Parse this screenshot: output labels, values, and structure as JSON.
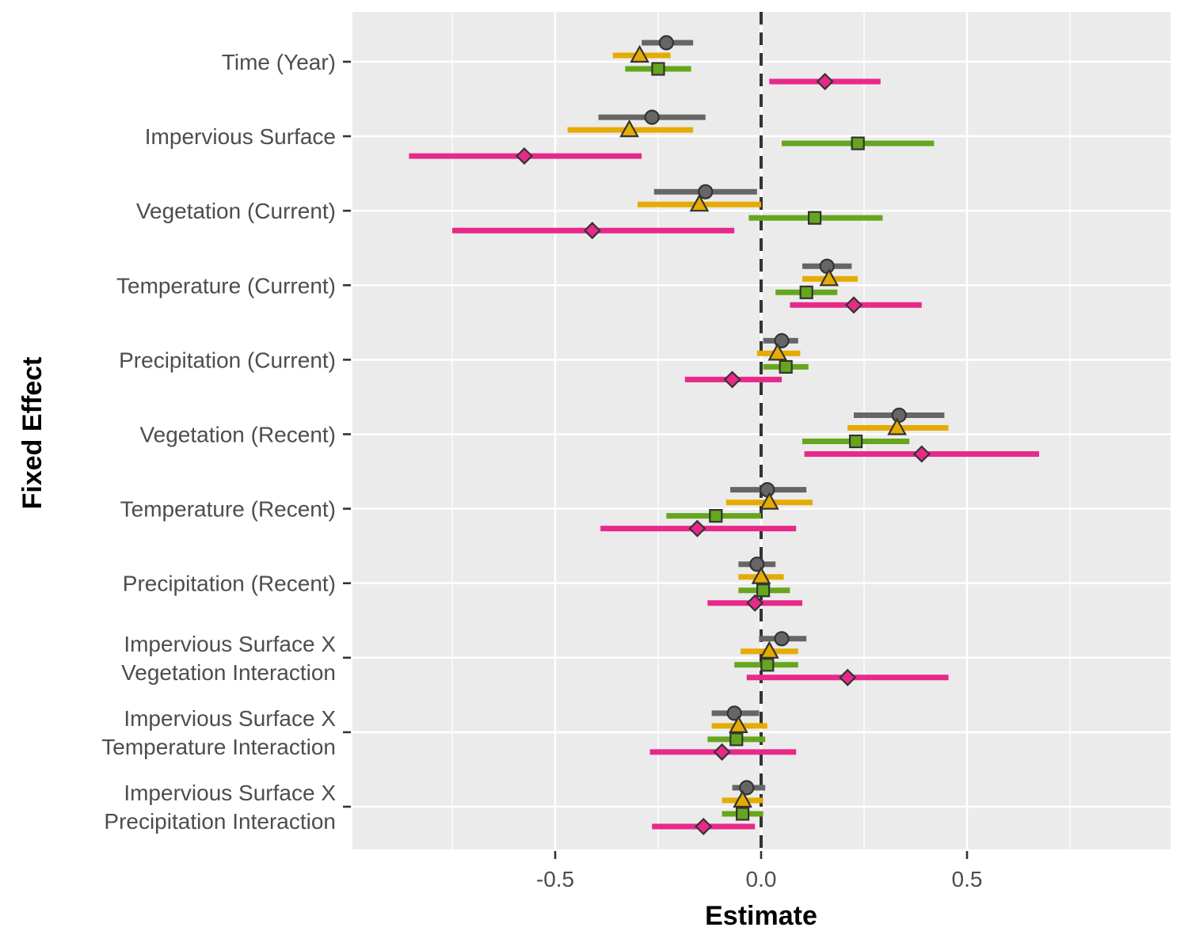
{
  "chart_data": {
    "type": "forest",
    "xlabel": "Estimate",
    "ylabel": "Fixed Effect",
    "xlim": [
      -1.0,
      1.0
    ],
    "x_ticks": [
      -0.5,
      0.0,
      0.5
    ],
    "x_tick_labels": [
      "-0.5",
      "0.0",
      "0.5"
    ],
    "reference_line": 0,
    "grid": true,
    "legend": "none",
    "categories": [
      [
        "Time (Year)"
      ],
      [
        "Impervious Surface"
      ],
      [
        "Vegetation (Current)"
      ],
      [
        "Temperature (Current)"
      ],
      [
        "Precipitation (Current)"
      ],
      [
        "Vegetation (Recent)"
      ],
      [
        "Temperature (Recent)"
      ],
      [
        "Precipitation (Recent)"
      ],
      [
        "Impervious Surface X",
        "Vegetation Interaction"
      ],
      [
        "Impervious Surface X",
        "Temperature Interaction"
      ],
      [
        "Impervious Surface X",
        "Precipitation Interaction"
      ]
    ],
    "series": [
      {
        "color": "#666666",
        "marker": "circle",
        "estimates": [
          -0.23,
          -0.265,
          -0.135,
          0.16,
          0.05,
          0.335,
          0.015,
          -0.01,
          0.05,
          -0.065,
          -0.035
        ],
        "lower": [
          -0.29,
          -0.395,
          -0.26,
          0.1,
          0.005,
          0.225,
          -0.075,
          -0.055,
          -0.005,
          -0.12,
          -0.07
        ],
        "upper": [
          -0.165,
          -0.135,
          -0.01,
          0.22,
          0.09,
          0.445,
          0.11,
          0.035,
          0.11,
          -0.005,
          0.01
        ]
      },
      {
        "color": "#E6AB02",
        "marker": "triangle",
        "estimates": [
          -0.295,
          -0.32,
          -0.15,
          0.165,
          0.04,
          0.33,
          0.02,
          0.0,
          0.02,
          -0.055,
          -0.045
        ],
        "lower": [
          -0.36,
          -0.47,
          -0.3,
          0.1,
          -0.01,
          0.21,
          -0.085,
          -0.055,
          -0.05,
          -0.12,
          -0.095
        ],
        "upper": [
          -0.22,
          -0.165,
          0.0,
          0.235,
          0.095,
          0.455,
          0.125,
          0.055,
          0.09,
          0.015,
          0.005
        ]
      },
      {
        "color": "#66A61E",
        "marker": "square",
        "estimates": [
          -0.25,
          0.235,
          0.13,
          0.11,
          0.06,
          0.23,
          -0.11,
          0.005,
          0.015,
          -0.06,
          -0.045
        ],
        "lower": [
          -0.33,
          0.05,
          -0.03,
          0.035,
          0.005,
          0.1,
          -0.23,
          -0.055,
          -0.065,
          -0.13,
          -0.095
        ],
        "upper": [
          -0.17,
          0.42,
          0.295,
          0.185,
          0.115,
          0.36,
          0.0,
          0.07,
          0.09,
          0.01,
          0.005
        ]
      },
      {
        "color": "#E7298A",
        "marker": "diamond",
        "estimates": [
          0.155,
          -0.575,
          -0.41,
          0.225,
          -0.07,
          0.39,
          -0.155,
          -0.015,
          0.21,
          -0.095,
          -0.14
        ],
        "lower": [
          0.02,
          -0.855,
          -0.75,
          0.07,
          -0.185,
          0.105,
          -0.39,
          -0.13,
          -0.035,
          -0.27,
          -0.265
        ],
        "upper": [
          0.29,
          -0.29,
          -0.065,
          0.39,
          0.05,
          0.675,
          0.085,
          0.1,
          0.455,
          0.085,
          -0.015
        ]
      }
    ]
  }
}
